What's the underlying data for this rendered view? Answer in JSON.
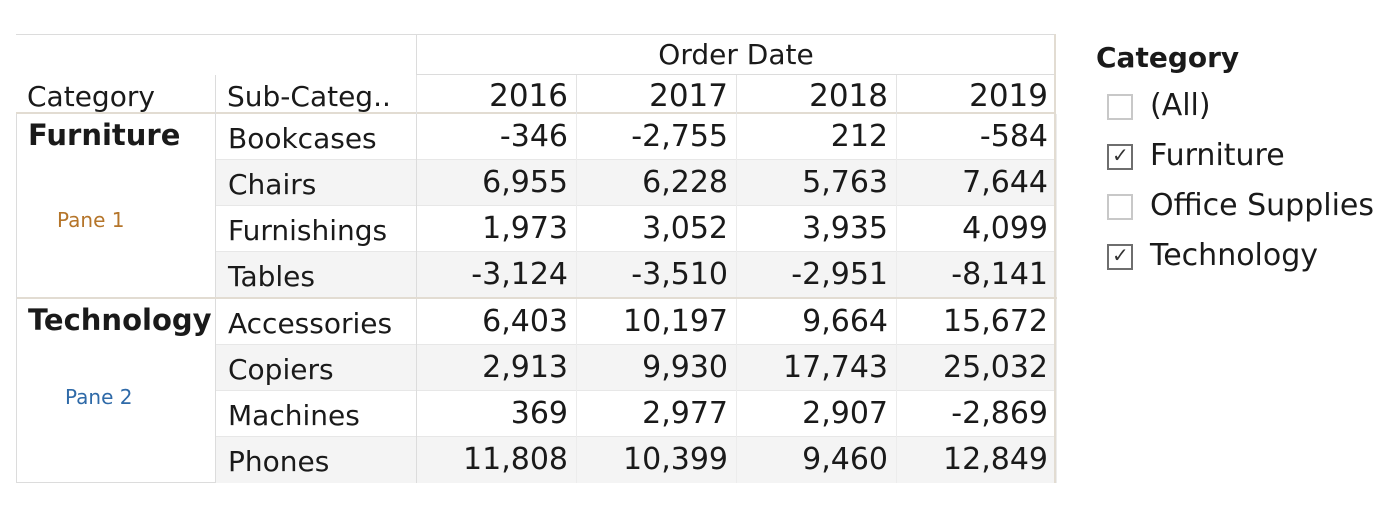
{
  "table": {
    "column_group_title": "Order Date",
    "row_headers": [
      "Category",
      "Sub-Categ.."
    ],
    "years": [
      "2016",
      "2017",
      "2018",
      "2019"
    ],
    "panes": [
      {
        "category": "Furniture",
        "pane_label": "Pane 1",
        "rows": [
          {
            "sub": "Bookcases",
            "values": [
              "-346",
              "-2,755",
              "212",
              "-584"
            ]
          },
          {
            "sub": "Chairs",
            "values": [
              "6,955",
              "6,228",
              "5,763",
              "7,644"
            ]
          },
          {
            "sub": "Furnishings",
            "values": [
              "1,973",
              "3,052",
              "3,935",
              "4,099"
            ]
          },
          {
            "sub": "Tables",
            "values": [
              "-3,124",
              "-3,510",
              "-2,951",
              "-8,141"
            ]
          }
        ]
      },
      {
        "category": "Technology",
        "pane_label": "Pane 2",
        "rows": [
          {
            "sub": "Accessories",
            "values": [
              "6,403",
              "10,197",
              "9,664",
              "15,672"
            ]
          },
          {
            "sub": "Copiers",
            "values": [
              "2,913",
              "9,930",
              "17,743",
              "25,032"
            ]
          },
          {
            "sub": "Machines",
            "values": [
              "369",
              "2,977",
              "2,907",
              "-2,869"
            ]
          },
          {
            "sub": "Phones",
            "values": [
              "11,808",
              "10,399",
              "9,460",
              "12,849"
            ]
          }
        ]
      }
    ]
  },
  "filter": {
    "title": "Category",
    "items": [
      {
        "label": "(All)",
        "checked": false
      },
      {
        "label": "Furniture",
        "checked": true
      },
      {
        "label": "Office Supplies",
        "checked": false
      },
      {
        "label": "Technology",
        "checked": true
      }
    ]
  },
  "colors": {
    "pane1_label": "#b5752a",
    "pane2_label": "#2f6aa8",
    "row_shade": "#f4f4f4"
  }
}
